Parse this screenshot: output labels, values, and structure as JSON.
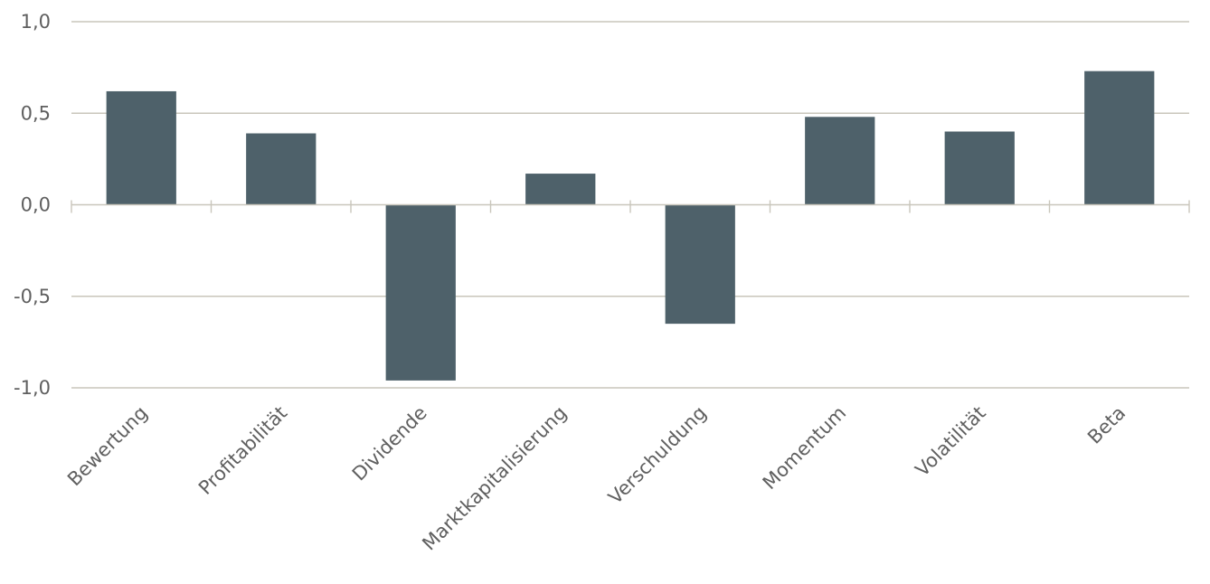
{
  "chart_data": {
    "type": "bar",
    "title": "",
    "xlabel": "",
    "ylabel": "",
    "categories": [
      "Bewertung",
      "Profitabilität",
      "Dividende",
      "Marktkapitalisierung",
      "Verschuldung",
      "Momentum",
      "Volatilität",
      "Beta"
    ],
    "values": [
      0.62,
      0.39,
      -0.96,
      0.17,
      -0.65,
      0.48,
      0.4,
      0.73
    ],
    "ylim": [
      -1.0,
      1.0
    ],
    "yticks": [
      1.0,
      0.5,
      0.0,
      -0.5,
      -1.0
    ],
    "ytick_labels": [
      "1,0",
      "0,5",
      "0,0",
      "-0,5",
      "-1,0"
    ],
    "grid": true,
    "legend": "none",
    "bar_color": "#4e616a",
    "grid_color": "#c9c6bb",
    "text_color": "#5f5f5f"
  }
}
